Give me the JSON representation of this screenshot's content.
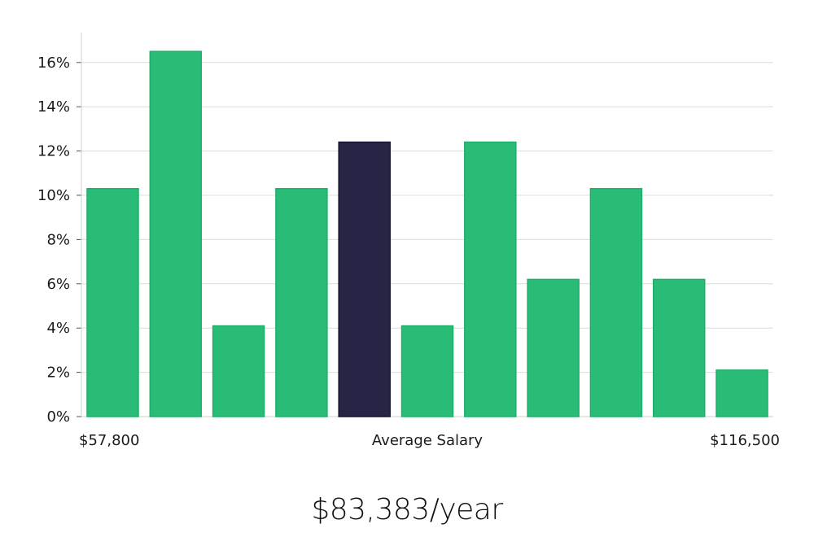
{
  "chart_data": {
    "type": "bar",
    "values": [
      10.3,
      16.5,
      4.1,
      10.3,
      12.4,
      4.1,
      12.4,
      6.2,
      10.3,
      6.2,
      2.1
    ],
    "highlight_index": 4,
    "ylim": [
      0,
      17
    ],
    "y_ticks": [
      0,
      2,
      4,
      6,
      8,
      10,
      12,
      14,
      16
    ],
    "y_tick_suffix": "%",
    "x_min_label": "$57,800",
    "x_center_label": "Average Salary",
    "x_max_label": "$116,500",
    "grid": true,
    "colors": {
      "bar": "#29bc76",
      "bar_border": "#1faf69",
      "highlight": "#272446",
      "grid": "#dcdcdc",
      "axis": "#cfcfcf"
    }
  },
  "average_salary": "$83,383/year"
}
